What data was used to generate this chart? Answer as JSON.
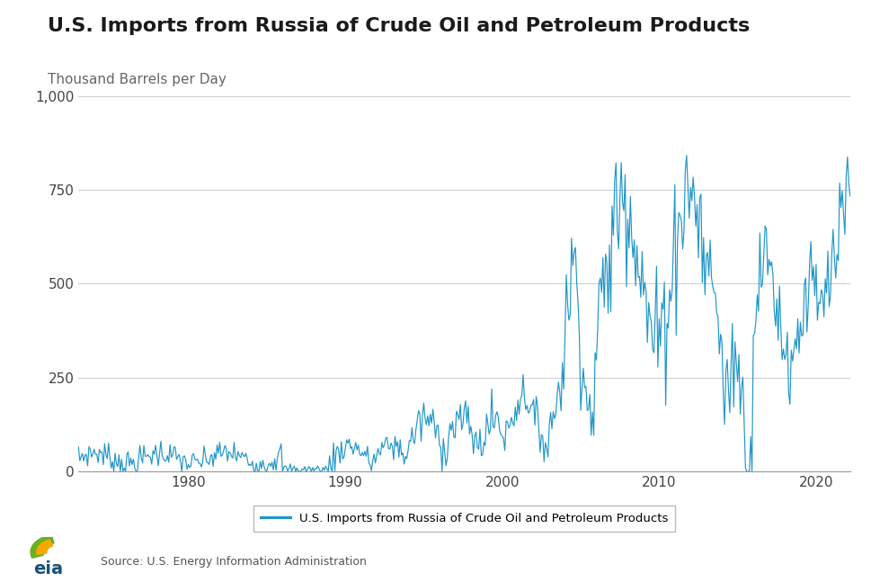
{
  "title": "U.S. Imports from Russia of Crude Oil and Petroleum Products",
  "subtitle": "Thousand Barrels per Day",
  "line_color": "#2196C8",
  "legend_label": "U.S. Imports from Russia of Crude Oil and Petroleum Products",
  "source_text": "Source: U.S. Energy Information Administration",
  "bg_color": "#ffffff",
  "ylim": [
    0,
    1000
  ],
  "yticks": [
    0,
    250,
    500,
    750,
    1000
  ],
  "ytick_labels": [
    "0",
    "250",
    "500",
    "750",
    "1,000"
  ],
  "xtick_years": [
    1980,
    1990,
    2000,
    2010,
    2020
  ],
  "start_year": 1973.0,
  "end_year": 2022.25,
  "title_fontsize": 16,
  "subtitle_fontsize": 11,
  "axis_fontsize": 11
}
